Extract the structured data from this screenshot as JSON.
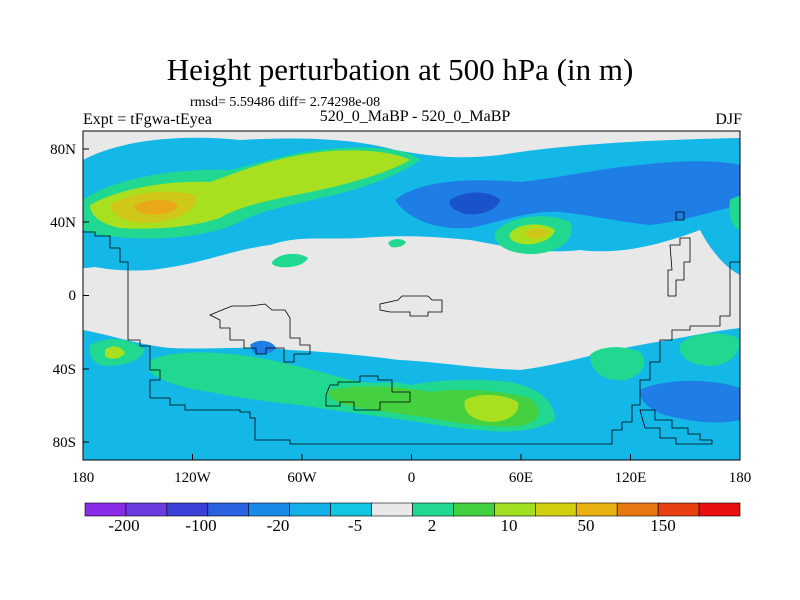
{
  "title": "Height perturbation at 500 hPa (in m)",
  "stats": "rmsd= 5.59486 diff= 2.74298e-08",
  "left_label": "Expt = tFgwa-tEyea",
  "center_label": "520_0_MaBP - 520_0_MaBP",
  "right_label": "DJF",
  "map": {
    "lon_ticks": [
      "180",
      "120W",
      "60W",
      "0",
      "60E",
      "120E",
      "180"
    ],
    "lat_ticks": [
      "80N",
      "40N",
      "0",
      "40S",
      "80S"
    ],
    "background_color": "#e8e8e8"
  },
  "colorbar": {
    "colors": [
      "#8a2be8",
      "#6a3ce0",
      "#3a40d8",
      "#2a62e0",
      "#1a8ae8",
      "#14aee8",
      "#10c6e0",
      "#e8e8e8",
      "#20d890",
      "#40d040",
      "#a0e020",
      "#d0d010",
      "#e8b010",
      "#e87810",
      "#e84010",
      "#e81010"
    ],
    "labels": [
      "-200",
      "-100",
      "-20",
      "-5",
      "2",
      "10",
      "50",
      "150"
    ]
  },
  "fields": {
    "cyan": "#14b8e6",
    "blue": "#1e7ee6",
    "deep_blue": "#1a52cc",
    "teal_green": "#20d890",
    "green": "#44d040",
    "yellow_green": "#a8e020",
    "yellow": "#d0c818",
    "orange": "#e8a818",
    "coast": "#000000"
  }
}
